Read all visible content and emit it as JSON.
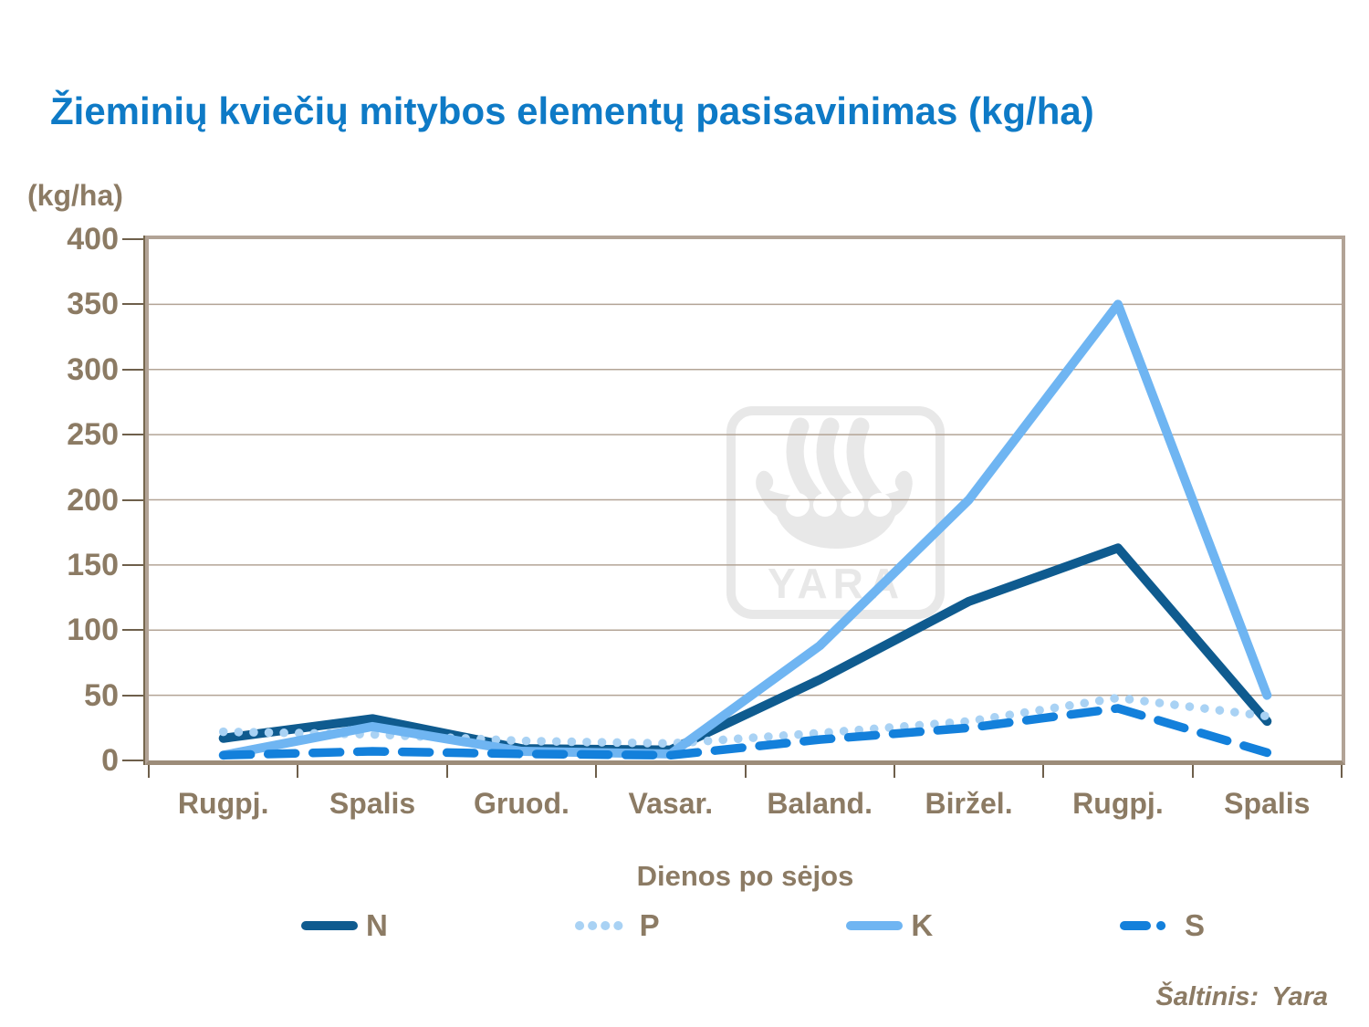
{
  "title": "Žieminių kviečių mitybos elementų pasisavinimas (kg/ha)",
  "y_axis_unit_label": "(kg/ha)",
  "source": {
    "label": "Šaltinis:",
    "value": "Yara"
  },
  "watermark": {
    "text": "YARA",
    "icon": "yara-viking-ship-logo",
    "color": "#E8E8E8"
  },
  "colors": {
    "title_blue": "#0E7AC6",
    "axis_text_brown": "#8C7B64",
    "gridline": "#B3A496",
    "frame_border": "#B2A396",
    "tick_dark": "#6E5F4B"
  },
  "chart_data": {
    "type": "line",
    "categories": [
      "Rugpj.",
      "Spalis",
      "Gruod.",
      "Vasar.",
      "Baland.",
      "Biržel.",
      "Rugpj.",
      "Spalis"
    ],
    "series": [
      {
        "name": "N",
        "color": "#0F5B8F",
        "style": "solid",
        "values": [
          17,
          32,
          9,
          8,
          62,
          122,
          163,
          30
        ]
      },
      {
        "name": "P",
        "color": "#A9D2F4",
        "style": "dotted",
        "values": [
          22,
          20,
          15,
          13,
          21,
          30,
          48,
          34
        ]
      },
      {
        "name": "K",
        "color": "#6FB5F2",
        "style": "solid",
        "values": [
          4,
          26,
          7,
          5,
          88,
          200,
          350,
          50
        ]
      },
      {
        "name": "S",
        "color": "#1380DB",
        "style": "dashed",
        "values": [
          4,
          7,
          5,
          4,
          16,
          25,
          40,
          6
        ]
      }
    ],
    "xlabel": "Dienos po sėjos",
    "ylabel": "(kg/ha)",
    "ylim": [
      0,
      400
    ],
    "yticks": [
      400,
      350,
      300,
      250,
      200,
      150,
      100,
      50,
      0
    ],
    "grid": true,
    "legend_position": "bottom"
  }
}
